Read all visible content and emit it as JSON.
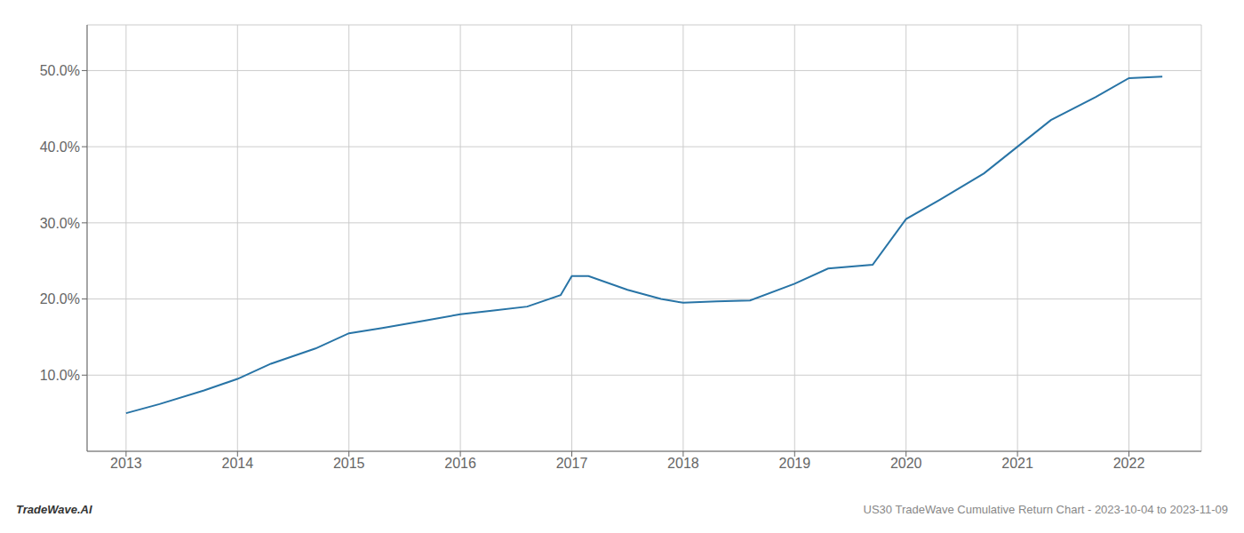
{
  "chart_data": {
    "type": "line",
    "x": [
      2013.0,
      2013.3,
      2013.7,
      2014.0,
      2014.3,
      2014.7,
      2015.0,
      2015.3,
      2015.7,
      2016.0,
      2016.3,
      2016.6,
      2016.9,
      2017.0,
      2017.15,
      2017.5,
      2017.8,
      2018.0,
      2018.3,
      2018.6,
      2019.0,
      2019.3,
      2019.7,
      2020.0,
      2020.3,
      2020.7,
      2021.0,
      2021.3,
      2021.7,
      2022.0,
      2022.3
    ],
    "values": [
      5.0,
      6.2,
      8.0,
      9.5,
      11.5,
      13.5,
      15.5,
      16.2,
      17.2,
      18.0,
      18.5,
      19.0,
      20.5,
      23.0,
      23.0,
      21.2,
      20.0,
      19.5,
      19.7,
      19.8,
      22.0,
      24.0,
      24.5,
      30.5,
      33.0,
      36.5,
      40.0,
      43.5,
      46.5,
      49.0,
      49.2
    ],
    "color": "#2874a6",
    "xlim": [
      2012.65,
      2022.65
    ],
    "ylim": [
      0,
      56
    ],
    "xticks": [
      2013,
      2014,
      2015,
      2016,
      2017,
      2018,
      2019,
      2020,
      2021,
      2022
    ],
    "yticks": [
      {
        "value": 10,
        "label": "10.0%"
      },
      {
        "value": 20,
        "label": "20.0%"
      },
      {
        "value": 30,
        "label": "30.0%"
      },
      {
        "value": 40,
        "label": "40.0%"
      },
      {
        "value": 50,
        "label": "50.0%"
      }
    ],
    "grid": true,
    "annotations": [
      "TradeWave.AI",
      "US30 TradeWave Cumulative Return Chart - 2023-10-04 to 2023-11-09"
    ]
  }
}
